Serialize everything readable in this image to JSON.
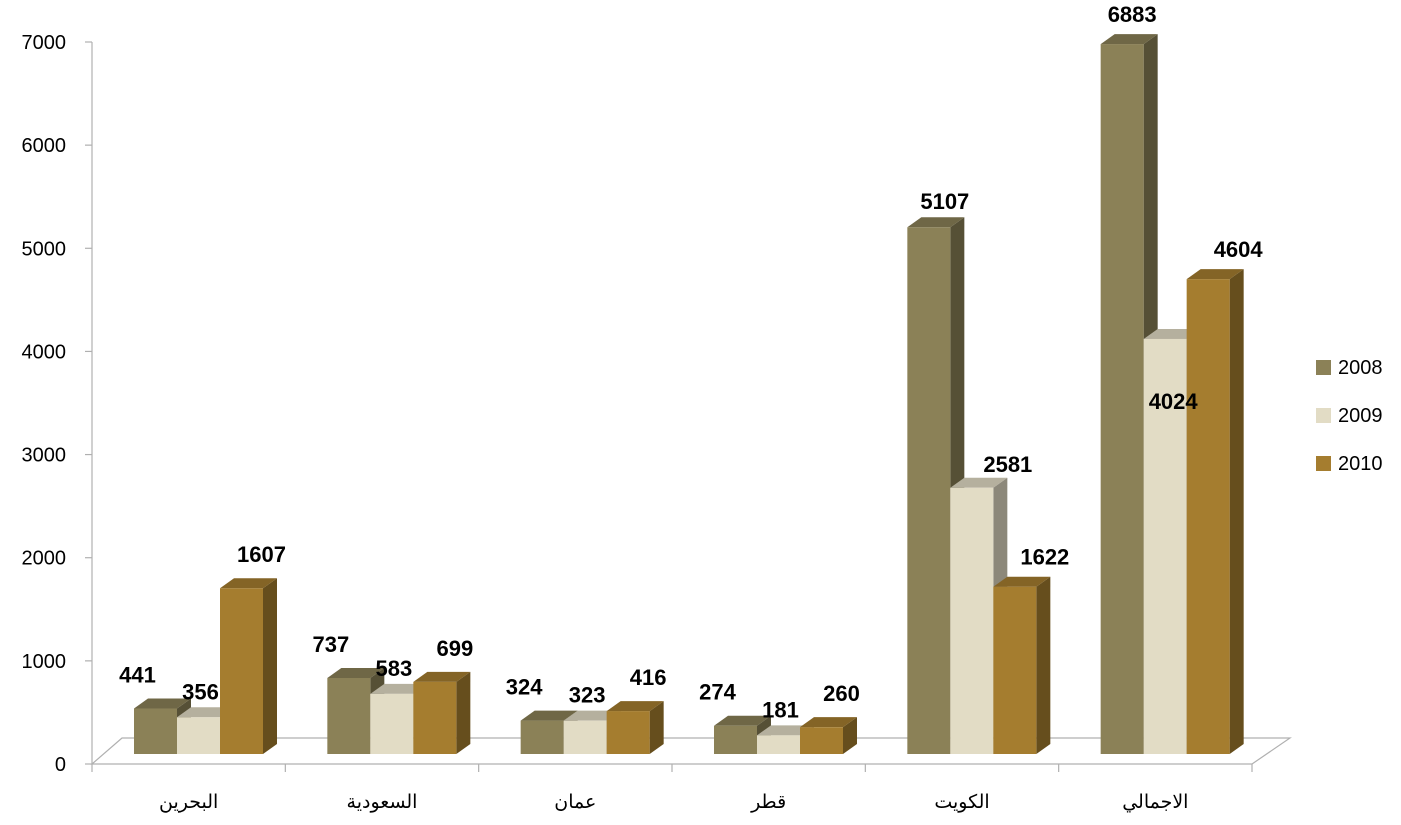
{
  "chart_data": {
    "type": "bar",
    "style": "3d-clustered-column",
    "title": "",
    "xlabel": "",
    "ylabel": "",
    "ylim": [
      0,
      7000
    ],
    "yticks": [
      0,
      1000,
      2000,
      3000,
      4000,
      5000,
      6000,
      7000
    ],
    "grid": false,
    "legend_position": "right",
    "categories": [
      "البحرين",
      "السعودية",
      "عمان",
      "قطر",
      "الكويت",
      "الاجمالي"
    ],
    "series": [
      {
        "name": "2008",
        "color": "#8B8157",
        "values": [
          441,
          737,
          324,
          274,
          5107,
          6883
        ]
      },
      {
        "name": "2009",
        "color": "#E2DCC5",
        "values": [
          356,
          583,
          323,
          181,
          2581,
          4024
        ]
      },
      {
        "name": "2010",
        "color": "#A57D2F",
        "values": [
          1607,
          699,
          416,
          260,
          1622,
          4604
        ]
      }
    ]
  }
}
